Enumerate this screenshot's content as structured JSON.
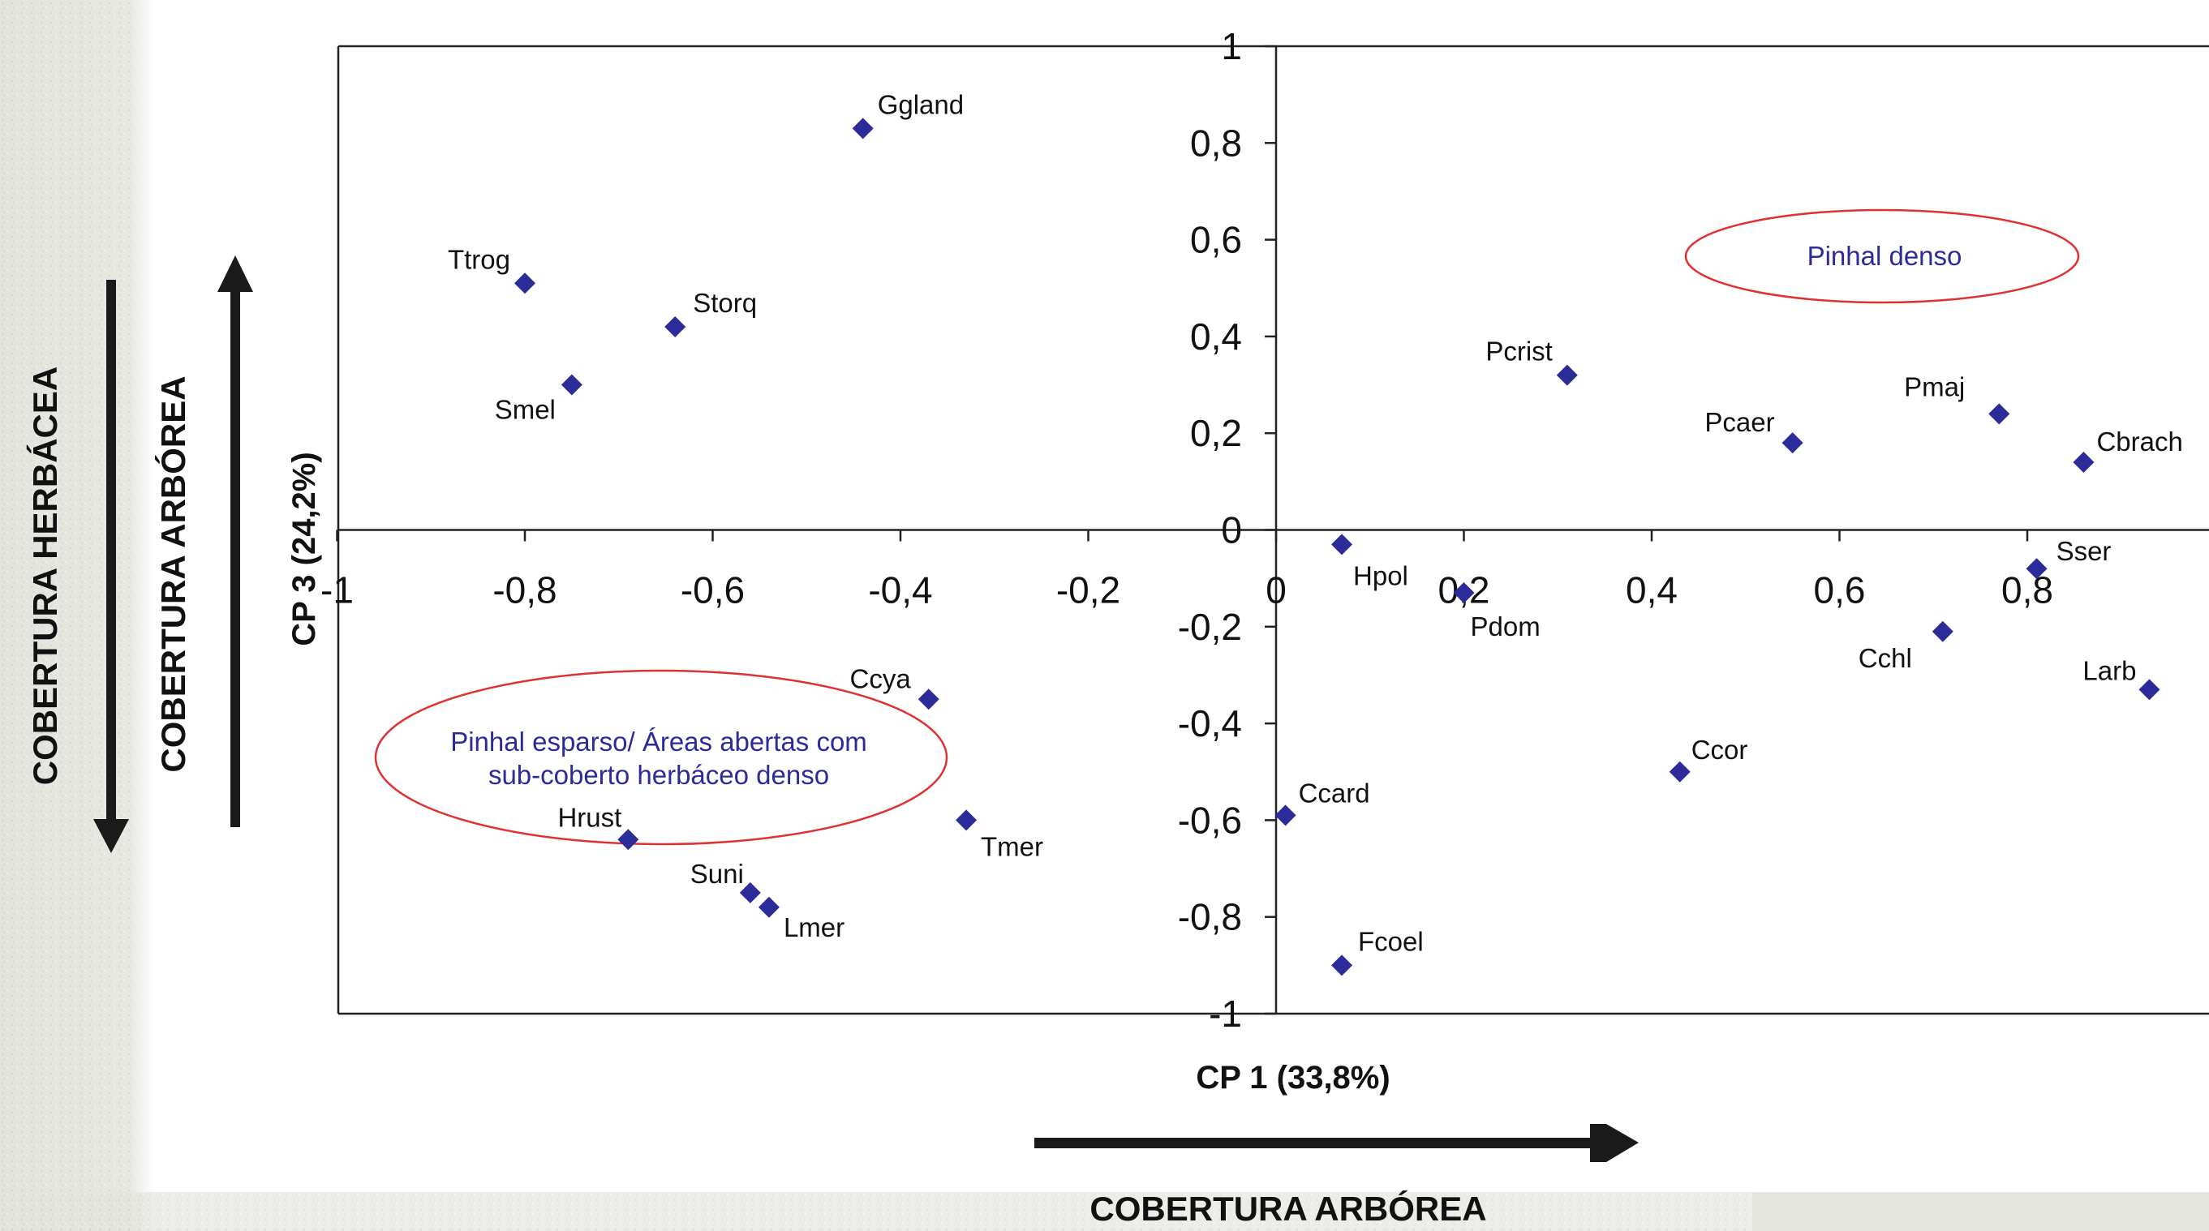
{
  "chart_data": {
    "type": "scatter",
    "title": "",
    "xlabel": "CP 1 (33,8%)",
    "ylabel": "CP 3 (24,2%)",
    "xlim": [
      -1,
      1
    ],
    "ylim": [
      -1,
      1
    ],
    "x_ticks": [
      "-1",
      "-0,8",
      "-0,6",
      "-0,4",
      "-0,2",
      "0",
      "0,2",
      "0,4",
      "0,6",
      "0,8"
    ],
    "y_ticks": [
      "1",
      "0,8",
      "0,6",
      "0,4",
      "0,2",
      "0",
      "-0,2",
      "-0,4",
      "-0,6",
      "-0,8",
      "-1"
    ],
    "grid": false,
    "marker_color": "#2b2b9a",
    "ellipse_color": "#e03030",
    "points": [
      {
        "label": "Ggland",
        "x": -0.44,
        "y": 0.83
      },
      {
        "label": "Ttrog",
        "x": -0.8,
        "y": 0.51
      },
      {
        "label": "Storq",
        "x": -0.64,
        "y": 0.42
      },
      {
        "label": "Smel",
        "x": -0.75,
        "y": 0.3
      },
      {
        "label": "Pcrist",
        "x": 0.31,
        "y": 0.32
      },
      {
        "label": "Pcaer",
        "x": 0.55,
        "y": 0.18
      },
      {
        "label": "Pmaj",
        "x": 0.77,
        "y": 0.24
      },
      {
        "label": "Cbrach",
        "x": 0.86,
        "y": 0.14
      },
      {
        "label": "Hpol",
        "x": 0.07,
        "y": -0.03
      },
      {
        "label": "Pdom",
        "x": 0.2,
        "y": -0.13
      },
      {
        "label": "Sser",
        "x": 0.81,
        "y": -0.08
      },
      {
        "label": "Cchl",
        "x": 0.71,
        "y": -0.21
      },
      {
        "label": "Larb",
        "x": 0.93,
        "y": -0.33
      },
      {
        "label": "Ccya",
        "x": -0.37,
        "y": -0.35
      },
      {
        "label": "Tmer",
        "x": -0.33,
        "y": -0.6
      },
      {
        "label": "Hrust",
        "x": -0.69,
        "y": -0.64
      },
      {
        "label": "Suni",
        "x": -0.56,
        "y": -0.75
      },
      {
        "label": "Lmer",
        "x": -0.54,
        "y": -0.78
      },
      {
        "label": "Ccor",
        "x": 0.43,
        "y": -0.5
      },
      {
        "label": "Ccard",
        "x": 0.01,
        "y": -0.59
      },
      {
        "label": "Fcoel",
        "x": 0.07,
        "y": -0.9
      }
    ],
    "annotations": [
      {
        "text": [
          "Pinhal denso"
        ]
      },
      {
        "text": [
          "Pinhal esparso/ Áreas abertas com",
          "sub-coberto herbáceo denso"
        ]
      }
    ],
    "side_labels": {
      "herbacea": "COBERTURA HERBÁCEA",
      "arborea_vertical": "COBERTURA ARBÓREA",
      "arborea_horizontal": "COBERTURA ARBÓREA"
    }
  }
}
